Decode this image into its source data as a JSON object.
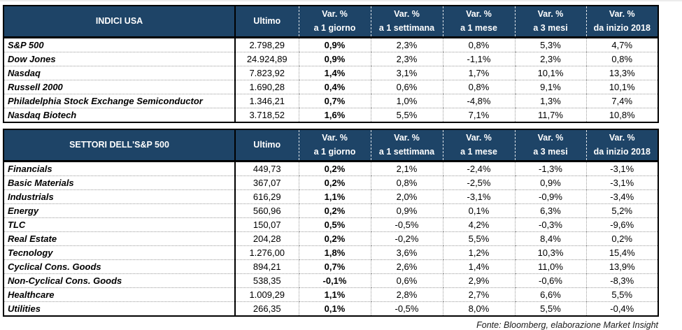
{
  "accent_color": "#1e4467",
  "tables": [
    {
      "title": "INDICI USA",
      "columns": [
        "Ultimo",
        "Var. %\na 1 giorno",
        "Var. %\na 1 settimana",
        "Var. %\na 1 mese",
        "Var. %\na 3 mesi",
        "Var. %\nda inizio 2018"
      ],
      "rows": [
        [
          "S&P 500",
          "2.798,29",
          "0,9%",
          "2,3%",
          "0,8%",
          "5,3%",
          "4,7%"
        ],
        [
          "Dow Jones",
          "24.924,89",
          "0,9%",
          "2,3%",
          "-1,1%",
          "2,3%",
          "0,8%"
        ],
        [
          "Nasdaq",
          "7.823,92",
          "1,4%",
          "3,1%",
          "1,7%",
          "10,1%",
          "13,3%"
        ],
        [
          "Russell 2000",
          "1.690,28",
          "0,4%",
          "0,6%",
          "0,8%",
          "9,1%",
          "10,1%"
        ],
        [
          "Philadelphia Stock Exchange Semiconductor",
          "1.346,21",
          "0,7%",
          "1,0%",
          "-4,8%",
          "1,3%",
          "7,4%"
        ],
        [
          "Nasdaq Biotech",
          "3.718,52",
          "1,6%",
          "5,5%",
          "7,1%",
          "11,7%",
          "10,8%"
        ]
      ]
    },
    {
      "title": "SETTORI DELL'S&P 500",
      "columns": [
        "Ultimo",
        "Var. %\na 1 giorno",
        "Var. %\na 1 settimana",
        "Var. %\na 1 mese",
        "Var. %\na 3 mesi",
        "Var. %\nda inizio 2018"
      ],
      "rows": [
        [
          "Financials",
          "449,73",
          "0,2%",
          "2,1%",
          "-2,4%",
          "-1,3%",
          "-3,1%"
        ],
        [
          "Basic Materials",
          "367,07",
          "0,2%",
          "0,8%",
          "-2,5%",
          "0,9%",
          "-3,1%"
        ],
        [
          "Industrials",
          "616,29",
          "1,1%",
          "2,0%",
          "-3,1%",
          "-0,9%",
          "-3,4%"
        ],
        [
          "Energy",
          "560,96",
          "0,2%",
          "0,9%",
          "0,1%",
          "6,3%",
          "5,2%"
        ],
        [
          "TLC",
          "150,07",
          "0,5%",
          "-0,5%",
          "4,2%",
          "-0,3%",
          "-9,6%"
        ],
        [
          "Real Estate",
          "204,28",
          "0,2%",
          "-0,2%",
          "5,5%",
          "8,4%",
          "0,2%"
        ],
        [
          "Tecnology",
          "1.276,00",
          "1,8%",
          "3,6%",
          "1,2%",
          "10,3%",
          "15,4%"
        ],
        [
          "Cyclical Cons. Goods",
          "894,21",
          "0,7%",
          "2,6%",
          "1,4%",
          "11,0%",
          "13,9%"
        ],
        [
          "Non-Cyclical Cons. Goods",
          "538,35",
          "-0,1%",
          "0,6%",
          "2,9%",
          "-0,6%",
          "-8,3%"
        ],
        [
          "Healthcare",
          "1.009,29",
          "1,1%",
          "2,8%",
          "2,7%",
          "6,6%",
          "5,5%"
        ],
        [
          "Utilities",
          "266,35",
          "0,1%",
          "-0,5%",
          "8,0%",
          "5,5%",
          "-0,4%"
        ]
      ]
    }
  ],
  "footer": "Fonte: Bloomberg, elaborazione Market Insight"
}
